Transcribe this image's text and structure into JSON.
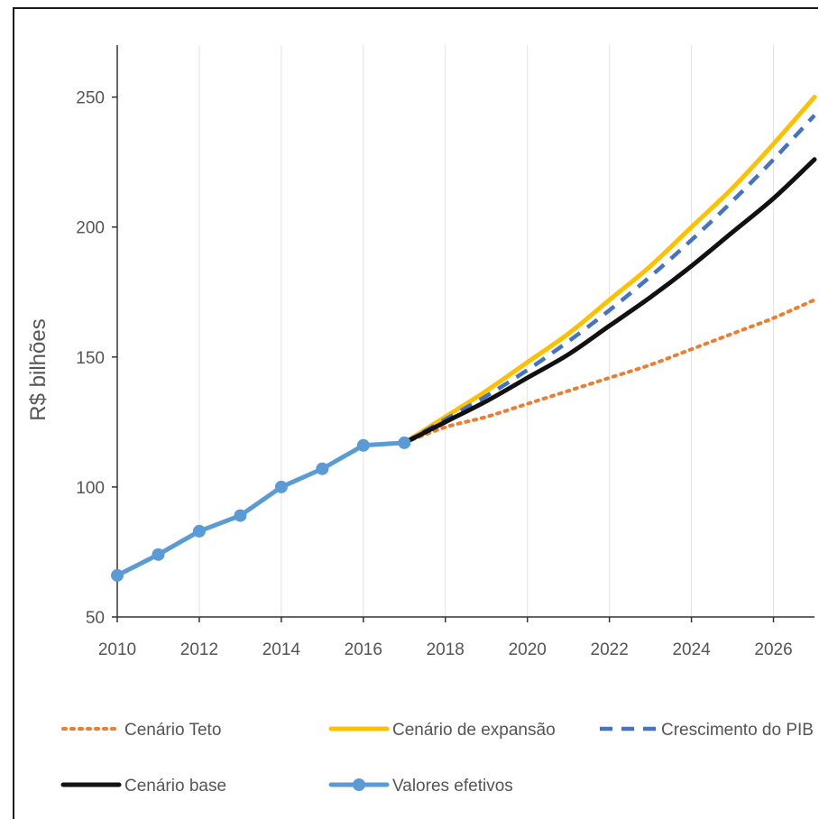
{
  "chart_data": {
    "type": "line",
    "title": "",
    "xlabel": "",
    "ylabel": "R$ bilhões",
    "xlim": [
      2010,
      2027
    ],
    "ylim": [
      50,
      270
    ],
    "x_ticks": [
      "2010",
      "2012",
      "2014",
      "2016",
      "2018",
      "2020",
      "2022",
      "2024",
      "2026"
    ],
    "y_ticks": [
      "50",
      "100",
      "150",
      "200",
      "250"
    ],
    "grid": "vertical",
    "legend_position": "bottom",
    "series": [
      {
        "name": "Cenário Teto",
        "color": "#ED7D31",
        "style": "dotted",
        "x": [
          2017,
          2018,
          2019,
          2020,
          2021,
          2022,
          2023,
          2024,
          2025,
          2026,
          2027
        ],
        "y": [
          117,
          123,
          127,
          132,
          137,
          142,
          147,
          153,
          159,
          165,
          172
        ]
      },
      {
        "name": "Cenário de expansão",
        "color": "#FFC000",
        "style": "solid",
        "x": [
          2017,
          2018,
          2019,
          2020,
          2021,
          2022,
          2023,
          2024,
          2025,
          2026,
          2027
        ],
        "y": [
          117,
          127,
          137,
          148,
          159,
          172,
          185,
          200,
          215,
          232,
          250
        ]
      },
      {
        "name": "Crescimento do PIB",
        "color": "#4472C4",
        "style": "dashed",
        "x": [
          2017,
          2018,
          2019,
          2020,
          2021,
          2022,
          2023,
          2024,
          2025,
          2026,
          2027
        ],
        "y": [
          117,
          126,
          135,
          145,
          156,
          168,
          181,
          195,
          210,
          226,
          243
        ]
      },
      {
        "name": "Cenário base",
        "color": "#111111",
        "style": "solid",
        "x": [
          2017,
          2018,
          2019,
          2020,
          2021,
          2022,
          2023,
          2024,
          2025,
          2026,
          2027
        ],
        "y": [
          117,
          125,
          133,
          142,
          151,
          162,
          173,
          185,
          198,
          211,
          226
        ]
      },
      {
        "name": "Valores efetivos",
        "color": "#5B9BD5",
        "style": "solid-markers",
        "x": [
          2010,
          2011,
          2012,
          2013,
          2014,
          2015,
          2016,
          2017
        ],
        "y": [
          66,
          74,
          83,
          89,
          100,
          107,
          116,
          117
        ]
      }
    ]
  }
}
